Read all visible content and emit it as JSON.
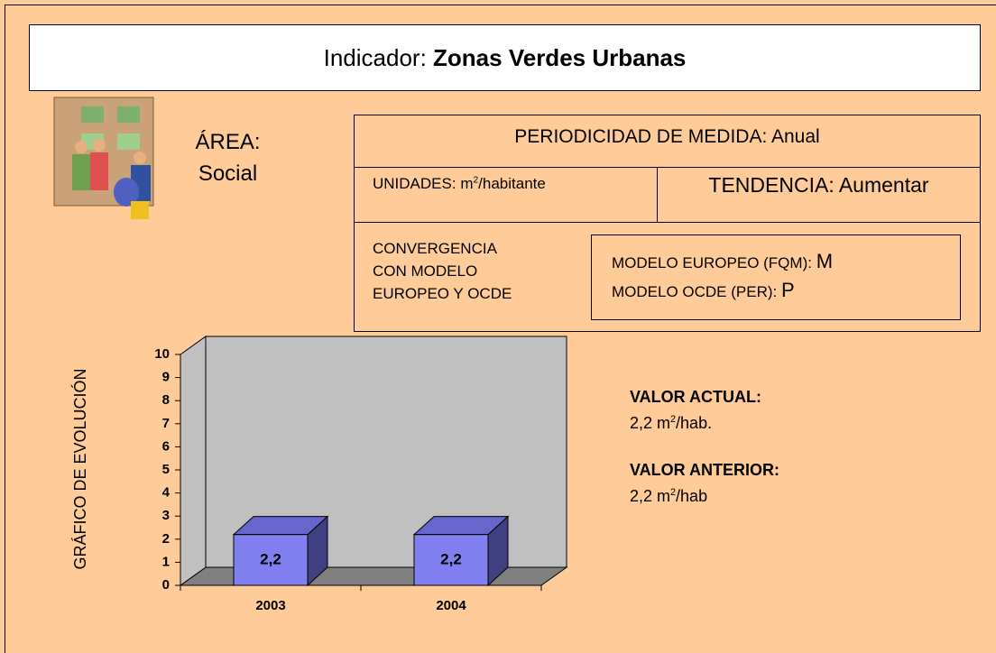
{
  "header": {
    "prefix": "Indicador:",
    "title": "Zonas Verdes Urbanas"
  },
  "area": {
    "label": "ÁREA:",
    "value": "Social"
  },
  "periodicidad": "PERIODICIDAD DE MEDIDA: Anual",
  "unidades": {
    "label": "UNIDADES:",
    "unit": "m",
    "exp": "2",
    "rest": "/habitante"
  },
  "tendencia": "TENDENCIA: Aumentar",
  "convergencia": {
    "lines": [
      "CONVERGENCIA",
      "CON MODELO",
      "EUROPEO Y OCDE"
    ],
    "europeo": {
      "label": "MODELO EUROPEO (FQM):",
      "value": "M"
    },
    "ocde": {
      "label": "MODELO OCDE (PER):",
      "value": "P"
    }
  },
  "chart_data": {
    "type": "bar",
    "y_label": "GRÁFICO DE EVOLUCIÓN",
    "categories": [
      "2003",
      "2004"
    ],
    "values": [
      2.2,
      2.2
    ],
    "value_labels": [
      "2,2",
      "2,2"
    ],
    "color": "#8080F0",
    "ylim": [
      0,
      10
    ],
    "yticks": [
      0,
      1,
      2,
      3,
      4,
      5,
      6,
      7,
      8,
      9,
      10
    ]
  },
  "valor_actual": {
    "label": "VALOR ACTUAL:",
    "value": "2,2 m",
    "exp": "2",
    "rest": "/hab."
  },
  "valor_anterior": {
    "label": "VALOR ANTERIOR:",
    "value": "2,2 m",
    "exp": "2",
    "rest": "/hab"
  }
}
